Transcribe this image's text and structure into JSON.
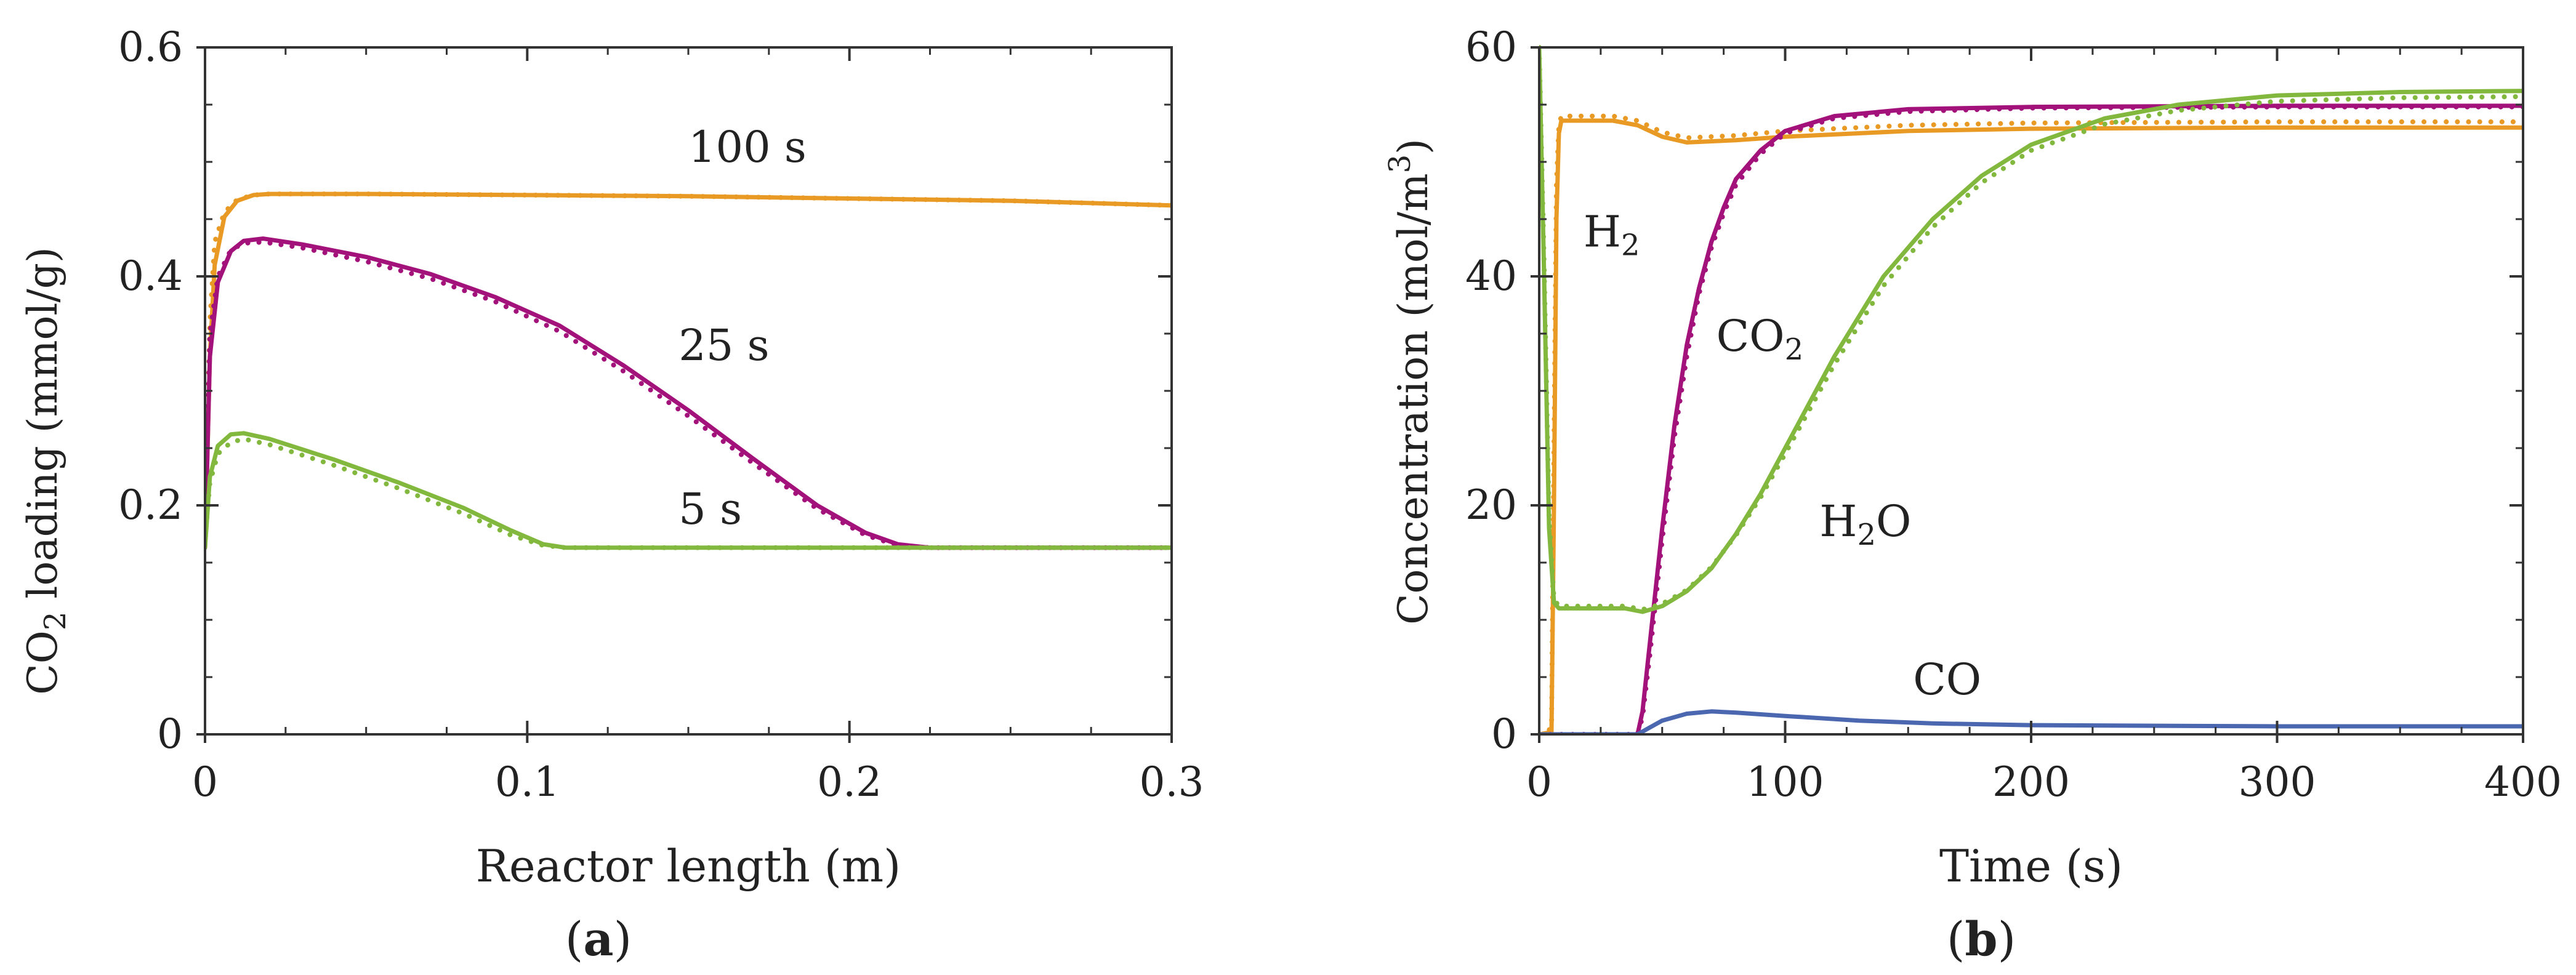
{
  "chart_data": [
    {
      "type": "line",
      "panel_label": {
        "prefix": "(",
        "letter": "a",
        "suffix": ")"
      },
      "xlabel": "Reactor length (m)",
      "ylabel": {
        "main": "CO",
        "sub": "2",
        "rest": " loading (mmol/g)"
      },
      "xlim": [
        0,
        0.3
      ],
      "ylim": [
        0,
        0.6
      ],
      "xticks": [
        0,
        0.1,
        0.2,
        0.3
      ],
      "xtick_labels": [
        "0",
        "0.1",
        "0.2",
        "0.3"
      ],
      "yticks": [
        0,
        0.2,
        0.4,
        0.6
      ],
      "ytick_labels": [
        "0",
        "0.2",
        "0.4",
        "0.6"
      ],
      "grid": false,
      "series": [
        {
          "name": "100 s",
          "color": "#e89a24",
          "style": "solid",
          "label": {
            "text": "100 s",
            "x": 0.15,
            "y": 0.5
          },
          "points": [
            [
              0,
              0.163
            ],
            [
              0.0015,
              0.33
            ],
            [
              0.003,
              0.41
            ],
            [
              0.006,
              0.452
            ],
            [
              0.01,
              0.466
            ],
            [
              0.015,
              0.471
            ],
            [
              0.02,
              0.472
            ],
            [
              0.05,
              0.472
            ],
            [
              0.1,
              0.471
            ],
            [
              0.15,
              0.47
            ],
            [
              0.2,
              0.468
            ],
            [
              0.25,
              0.466
            ],
            [
              0.3,
              0.462
            ]
          ]
        },
        {
          "name": "100 s (dotted)",
          "color": "#e89a24",
          "style": "dotted",
          "points": [
            [
              0,
              0.17
            ],
            [
              0.0015,
              0.36
            ],
            [
              0.003,
              0.43
            ],
            [
              0.006,
              0.456
            ],
            [
              0.01,
              0.467
            ],
            [
              0.015,
              0.471
            ],
            [
              0.02,
              0.472
            ],
            [
              0.05,
              0.472
            ],
            [
              0.1,
              0.471
            ],
            [
              0.15,
              0.47
            ],
            [
              0.2,
              0.468
            ],
            [
              0.25,
              0.466
            ],
            [
              0.3,
              0.462
            ]
          ]
        },
        {
          "name": "25 s",
          "color": "#a3127a",
          "style": "solid",
          "label": {
            "text": "25 s",
            "x": 0.147,
            "y": 0.327
          },
          "points": [
            [
              0,
              0.163
            ],
            [
              0.0015,
              0.33
            ],
            [
              0.004,
              0.395
            ],
            [
              0.008,
              0.422
            ],
            [
              0.012,
              0.431
            ],
            [
              0.018,
              0.433
            ],
            [
              0.03,
              0.428
            ],
            [
              0.05,
              0.417
            ],
            [
              0.07,
              0.402
            ],
            [
              0.09,
              0.382
            ],
            [
              0.11,
              0.357
            ],
            [
              0.13,
              0.322
            ],
            [
              0.15,
              0.283
            ],
            [
              0.17,
              0.241
            ],
            [
              0.19,
              0.2
            ],
            [
              0.205,
              0.176
            ],
            [
              0.215,
              0.166
            ],
            [
              0.225,
              0.163
            ],
            [
              0.3,
              0.163
            ]
          ]
        },
        {
          "name": "25 s (dotted)",
          "color": "#a3127a",
          "style": "dotted",
          "points": [
            [
              0,
              0.17
            ],
            [
              0.0015,
              0.35
            ],
            [
              0.004,
              0.4
            ],
            [
              0.008,
              0.423
            ],
            [
              0.012,
              0.429
            ],
            [
              0.018,
              0.43
            ],
            [
              0.03,
              0.425
            ],
            [
              0.05,
              0.413
            ],
            [
              0.07,
              0.398
            ],
            [
              0.09,
              0.378
            ],
            [
              0.11,
              0.352
            ],
            [
              0.13,
              0.317
            ],
            [
              0.15,
              0.278
            ],
            [
              0.17,
              0.237
            ],
            [
              0.19,
              0.197
            ],
            [
              0.205,
              0.174
            ],
            [
              0.215,
              0.165
            ],
            [
              0.225,
              0.163
            ],
            [
              0.3,
              0.163
            ]
          ]
        },
        {
          "name": "5 s",
          "color": "#82b83e",
          "style": "solid",
          "label": {
            "text": "5 s",
            "x": 0.147,
            "y": 0.184
          },
          "points": [
            [
              0,
              0.163
            ],
            [
              0.0015,
              0.225
            ],
            [
              0.004,
              0.252
            ],
            [
              0.008,
              0.262
            ],
            [
              0.012,
              0.263
            ],
            [
              0.02,
              0.258
            ],
            [
              0.04,
              0.24
            ],
            [
              0.06,
              0.22
            ],
            [
              0.08,
              0.198
            ],
            [
              0.095,
              0.178
            ],
            [
              0.105,
              0.166
            ],
            [
              0.112,
              0.163
            ],
            [
              0.3,
              0.163
            ]
          ]
        },
        {
          "name": "5 s (dotted)",
          "color": "#82b83e",
          "style": "dotted",
          "points": [
            [
              0,
              0.17
            ],
            [
              0.0015,
              0.22
            ],
            [
              0.004,
              0.245
            ],
            [
              0.008,
              0.255
            ],
            [
              0.012,
              0.258
            ],
            [
              0.02,
              0.253
            ],
            [
              0.04,
              0.235
            ],
            [
              0.06,
              0.215
            ],
            [
              0.08,
              0.193
            ],
            [
              0.095,
              0.174
            ],
            [
              0.105,
              0.165
            ],
            [
              0.112,
              0.163
            ],
            [
              0.3,
              0.163
            ]
          ]
        }
      ]
    },
    {
      "type": "line",
      "panel_label": {
        "prefix": "(",
        "letter": "b",
        "suffix": ")"
      },
      "xlabel": "Time (s)",
      "ylabel": {
        "main": "Concentration (mol/m",
        "sup": "3",
        "rest": ")"
      },
      "xlim": [
        0,
        400
      ],
      "ylim": [
        0,
        60
      ],
      "xticks": [
        0,
        100,
        200,
        300,
        400
      ],
      "xtick_labels": [
        "0",
        "100",
        "200",
        "300",
        "400"
      ],
      "yticks": [
        0,
        20,
        40,
        60
      ],
      "ytick_labels": [
        "0",
        "20",
        "40",
        "60"
      ],
      "grid": false,
      "series": [
        {
          "name": "H2",
          "color": "#e89a24",
          "style": "solid",
          "label": {
            "main": "H",
            "sub": "2",
            "rest": "",
            "x": 18,
            "y": 42.6
          },
          "points": [
            [
              0,
              0
            ],
            [
              5,
              0.2
            ],
            [
              6,
              20
            ],
            [
              7,
              45
            ],
            [
              8,
              52.5
            ],
            [
              9,
              53.6
            ],
            [
              30,
              53.6
            ],
            [
              40,
              53.2
            ],
            [
              50,
              52.2
            ],
            [
              60,
              51.7
            ],
            [
              80,
              51.9
            ],
            [
              100,
              52.2
            ],
            [
              150,
              52.7
            ],
            [
              200,
              52.9
            ],
            [
              300,
              53.0
            ],
            [
              400,
              53.0
            ]
          ]
        },
        {
          "name": "H2 (dotted)",
          "color": "#e89a24",
          "style": "dotted",
          "points": [
            [
              0,
              0
            ],
            [
              5,
              0.5
            ],
            [
              6,
              25
            ],
            [
              7,
              48
            ],
            [
              8,
              53.2
            ],
            [
              9,
              54.0
            ],
            [
              30,
              54.0
            ],
            [
              40,
              53.6
            ],
            [
              50,
              52.6
            ],
            [
              60,
              52.1
            ],
            [
              80,
              52.3
            ],
            [
              100,
              52.7
            ],
            [
              150,
              53.2
            ],
            [
              200,
              53.4
            ],
            [
              300,
              53.5
            ],
            [
              400,
              53.5
            ]
          ]
        },
        {
          "name": "CO2",
          "color": "#a3127a",
          "style": "solid",
          "label": {
            "main": "CO",
            "sub": "2",
            "rest": "",
            "x": 72,
            "y": 33.5
          },
          "points": [
            [
              0,
              0
            ],
            [
              40,
              0
            ],
            [
              42,
              2
            ],
            [
              45,
              8
            ],
            [
              50,
              18
            ],
            [
              55,
              27
            ],
            [
              60,
              34
            ],
            [
              65,
              39
            ],
            [
              70,
              43
            ],
            [
              75,
              46
            ],
            [
              80,
              48.5
            ],
            [
              90,
              51
            ],
            [
              100,
              52.7
            ],
            [
              120,
              54
            ],
            [
              150,
              54.6
            ],
            [
              200,
              54.8
            ],
            [
              300,
              54.9
            ],
            [
              400,
              54.9
            ]
          ]
        },
        {
          "name": "CO2 (dotted)",
          "color": "#a3127a",
          "style": "dotted",
          "points": [
            [
              0,
              0
            ],
            [
              40,
              0
            ],
            [
              42,
              1.5
            ],
            [
              45,
              7
            ],
            [
              50,
              17
            ],
            [
              55,
              26
            ],
            [
              60,
              33
            ],
            [
              65,
              38.5
            ],
            [
              70,
              42.5
            ],
            [
              75,
              45.5
            ],
            [
              80,
              48
            ],
            [
              90,
              50.7
            ],
            [
              100,
              52.5
            ],
            [
              120,
              53.8
            ],
            [
              150,
              54.4
            ],
            [
              200,
              54.7
            ],
            [
              300,
              54.8
            ],
            [
              400,
              54.8
            ]
          ]
        },
        {
          "name": "H2O",
          "color": "#82b83e",
          "style": "solid",
          "label": {
            "main": "H",
            "sub": "2",
            "rest": "O",
            "x": 114,
            "y": 17.3
          },
          "points": [
            [
              0,
              60
            ],
            [
              2,
              40
            ],
            [
              4,
              18
            ],
            [
              6,
              11.5
            ],
            [
              8,
              11
            ],
            [
              20,
              11
            ],
            [
              35,
              11
            ],
            [
              42,
              10.7
            ],
            [
              50,
              11.2
            ],
            [
              60,
              12.5
            ],
            [
              70,
              14.5
            ],
            [
              80,
              17.5
            ],
            [
              90,
              21
            ],
            [
              100,
              25
            ],
            [
              120,
              33
            ],
            [
              140,
              40
            ],
            [
              160,
              45
            ],
            [
              180,
              48.8
            ],
            [
              200,
              51.5
            ],
            [
              230,
              53.8
            ],
            [
              260,
              55
            ],
            [
              300,
              55.8
            ],
            [
              350,
              56.1
            ],
            [
              400,
              56.2
            ]
          ]
        },
        {
          "name": "H2O (dotted)",
          "color": "#82b83e",
          "style": "dotted",
          "points": [
            [
              0,
              60
            ],
            [
              2,
              41
            ],
            [
              4,
              19
            ],
            [
              6,
              11.8
            ],
            [
              8,
              11.2
            ],
            [
              20,
              11.2
            ],
            [
              35,
              11.2
            ],
            [
              42,
              10.9
            ],
            [
              50,
              11.4
            ],
            [
              60,
              12.6
            ],
            [
              70,
              14.6
            ],
            [
              80,
              17.4
            ],
            [
              90,
              20.7
            ],
            [
              100,
              24.5
            ],
            [
              120,
              32.3
            ],
            [
              140,
              39.2
            ],
            [
              160,
              44.3
            ],
            [
              180,
              48.2
            ],
            [
              200,
              51
            ],
            [
              230,
              53.3
            ],
            [
              260,
              54.5
            ],
            [
              300,
              55.3
            ],
            [
              350,
              55.6
            ],
            [
              400,
              55.7
            ]
          ]
        },
        {
          "name": "CO",
          "color": "#4a67b0",
          "style": "solid",
          "label": {
            "main": "CO",
            "sub": "",
            "rest": "",
            "x": 152,
            "y": 3.5
          },
          "points": [
            [
              0,
              0
            ],
            [
              40,
              0
            ],
            [
              45,
              0.6
            ],
            [
              50,
              1.2
            ],
            [
              60,
              1.8
            ],
            [
              70,
              2.0
            ],
            [
              80,
              1.9
            ],
            [
              100,
              1.6
            ],
            [
              130,
              1.2
            ],
            [
              160,
              0.95
            ],
            [
              200,
              0.8
            ],
            [
              300,
              0.7
            ],
            [
              400,
              0.7
            ]
          ]
        }
      ]
    }
  ]
}
